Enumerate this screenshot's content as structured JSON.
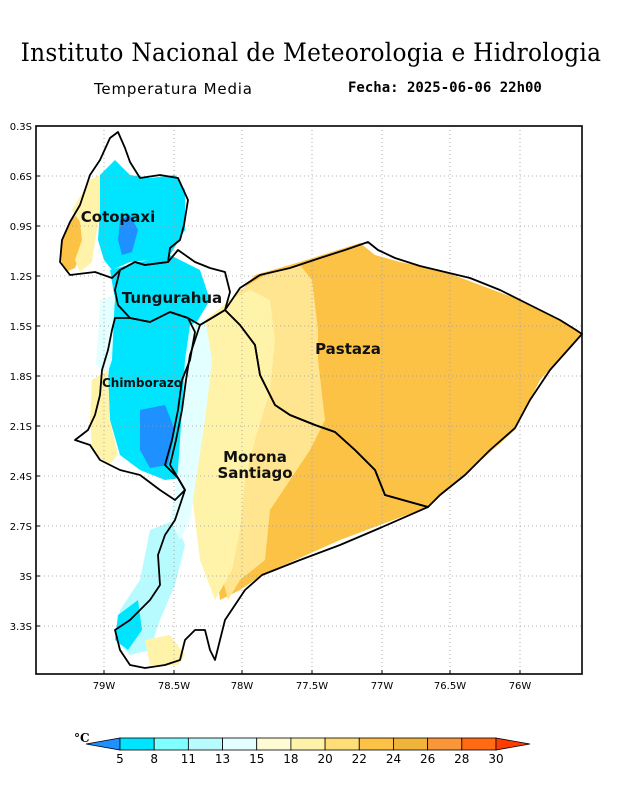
{
  "header": {
    "institution": "Instituto Nacional de Meteorologia e Hidrologia",
    "variable": "Temperatura Media",
    "datetime": "Fecha: 2025-06-06 22h00"
  },
  "map": {
    "lat_labels": [
      "0.3S",
      "0.6S",
      "0.9S",
      "1.2S",
      "1.5S",
      "1.8S",
      "2.1S",
      "2.4S",
      "2.7S",
      "3S",
      "3.3S"
    ],
    "lon_labels": [
      "79W",
      "78.5W",
      "78W",
      "77.5W",
      "77W",
      "76.5W",
      "76W"
    ],
    "provinces": {
      "cotopaxi": "Cotopaxi",
      "tungurahua": "Tungurahua",
      "chimborazo": "Chimborazo",
      "pastaza": "Pastaza",
      "morona_line1": "Morona",
      "morona_line2": "Santiago"
    }
  },
  "colorbar": {
    "unit": "°C",
    "ticks": [
      "5",
      "8",
      "11",
      "13",
      "15",
      "18",
      "20",
      "22",
      "24",
      "26",
      "28",
      "30"
    ],
    "colors": [
      "#1e90ff",
      "#00e5ff",
      "#7fffff",
      "#b8fbff",
      "#e3ffff",
      "#fffbd5",
      "#fff3a9",
      "#ffdd77",
      "#fcc246",
      "#f1b43a",
      "#fa9637",
      "#ff6a12",
      "#ff3c00"
    ]
  }
}
